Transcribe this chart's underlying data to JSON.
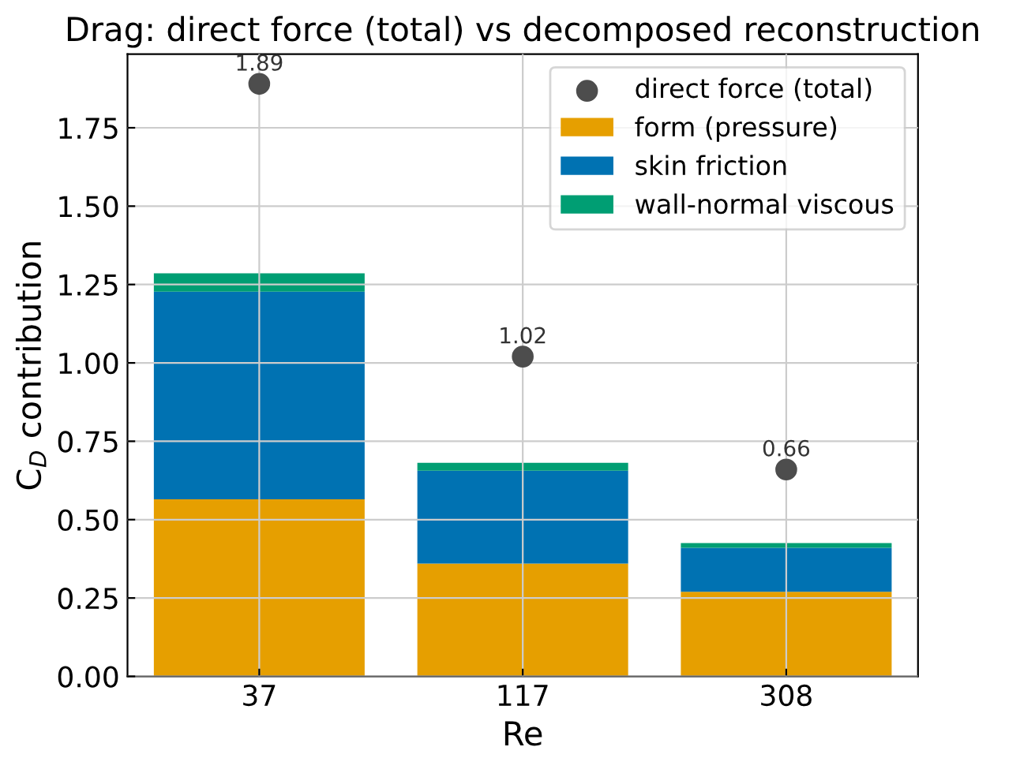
{
  "chart_data": {
    "type": "bar",
    "stacked": true,
    "title": "Drag: direct force (total) vs decomposed reconstruction",
    "xlabel": "Re",
    "ylabel": "C$_{D}$ contribution",
    "categories": [
      "37",
      "117",
      "308"
    ],
    "ylim": [
      0,
      1.985
    ],
    "yticks": [
      {
        "value": 0,
        "label": "0.00"
      },
      {
        "value": 0.25,
        "label": "0.25"
      },
      {
        "value": 0.5,
        "label": "0.50"
      },
      {
        "value": 0.75,
        "label": "0.75"
      },
      {
        "value": 1,
        "label": "1.00"
      },
      {
        "value": 1.25,
        "label": "1.25"
      },
      {
        "value": 1.5,
        "label": "1.50"
      },
      {
        "value": 1.75,
        "label": "1.75"
      }
    ],
    "grid": true,
    "legend": "top right",
    "series": [
      {
        "name": "direct force (total)",
        "type": "scatter",
        "color": "#4d4d4d",
        "x": [
          "37",
          "117",
          "308"
        ],
        "values": [
          1.89,
          1.02,
          0.66
        ],
        "value_labels": [
          "1.89",
          "1.02",
          "0.66"
        ],
        "marker": "circle"
      },
      {
        "name": "form (pressure)",
        "color": "#e69f00",
        "values": [
          0.565,
          0.36,
          0.27
        ]
      },
      {
        "name": "skin friction",
        "color": "#0072b2",
        "values": [
          0.662,
          0.296,
          0.14
        ]
      },
      {
        "name": "wall-normal viscous",
        "color": "#009e73",
        "values": [
          0.059,
          0.025,
          0.015
        ]
      }
    ]
  }
}
